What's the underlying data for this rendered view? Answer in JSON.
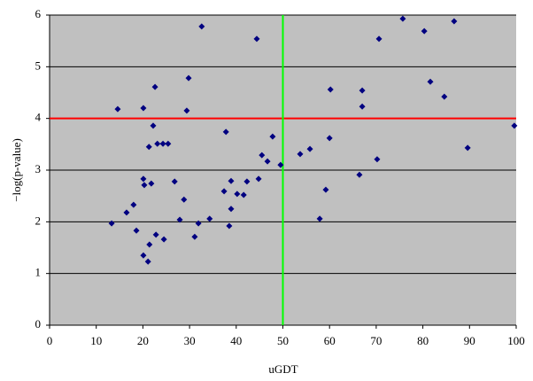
{
  "chart_data": {
    "type": "scatter",
    "xlabel": "uGDT",
    "ylabel": "−log(p-value)",
    "xlim": [
      0,
      100
    ],
    "ylim": [
      0,
      6
    ],
    "xticks": [
      0,
      10,
      20,
      30,
      40,
      50,
      60,
      70,
      80,
      90,
      100
    ],
    "yticks": [
      0,
      1,
      2,
      3,
      4,
      5,
      6
    ],
    "grid": true,
    "background": "#c0c0c0",
    "color": "#000080",
    "hlines": [
      {
        "value": 4,
        "color": "#ff0000"
      }
    ],
    "vlines": [
      {
        "value": 50,
        "color": "#00ff00"
      }
    ],
    "x": [
      13.3,
      14.6,
      16.5,
      18.0,
      18.6,
      20.1,
      20.1,
      20.3,
      20.1,
      21.1,
      21.3,
      21.4,
      21.8,
      22.2,
      22.6,
      22.8,
      23.1,
      24.3,
      24.5,
      25.4,
      26.8,
      27.9,
      28.8,
      29.4,
      29.8,
      31.1,
      31.9,
      32.6,
      34.3,
      37.4,
      37.8,
      38.5,
      38.9,
      38.9,
      40.2,
      41.6,
      42.3,
      44.4,
      44.8,
      45.5,
      46.7,
      47.8,
      49.5,
      53.7,
      55.8,
      57.9,
      59.2,
      60.0,
      60.2,
      66.4,
      67.0,
      67.0,
      70.2,
      70.6,
      75.7,
      80.3,
      81.6,
      84.6,
      86.7,
      89.6,
      99.6
    ],
    "values": [
      1.97,
      4.18,
      2.18,
      2.33,
      1.83,
      4.2,
      2.83,
      2.71,
      1.35,
      1.23,
      3.45,
      1.56,
      2.74,
      3.86,
      4.61,
      1.75,
      3.51,
      3.51,
      1.66,
      3.51,
      2.78,
      2.04,
      2.43,
      4.15,
      4.78,
      1.71,
      1.97,
      5.78,
      2.06,
      2.59,
      3.74,
      1.92,
      2.79,
      2.25,
      2.54,
      2.52,
      2.78,
      5.54,
      2.83,
      3.29,
      3.17,
      3.65,
      3.1,
      3.31,
      3.41,
      2.06,
      2.62,
      3.62,
      4.56,
      2.91,
      4.54,
      4.23,
      3.21,
      5.54,
      5.93,
      5.69,
      4.71,
      4.42,
      5.88,
      3.43,
      3.86
    ]
  }
}
